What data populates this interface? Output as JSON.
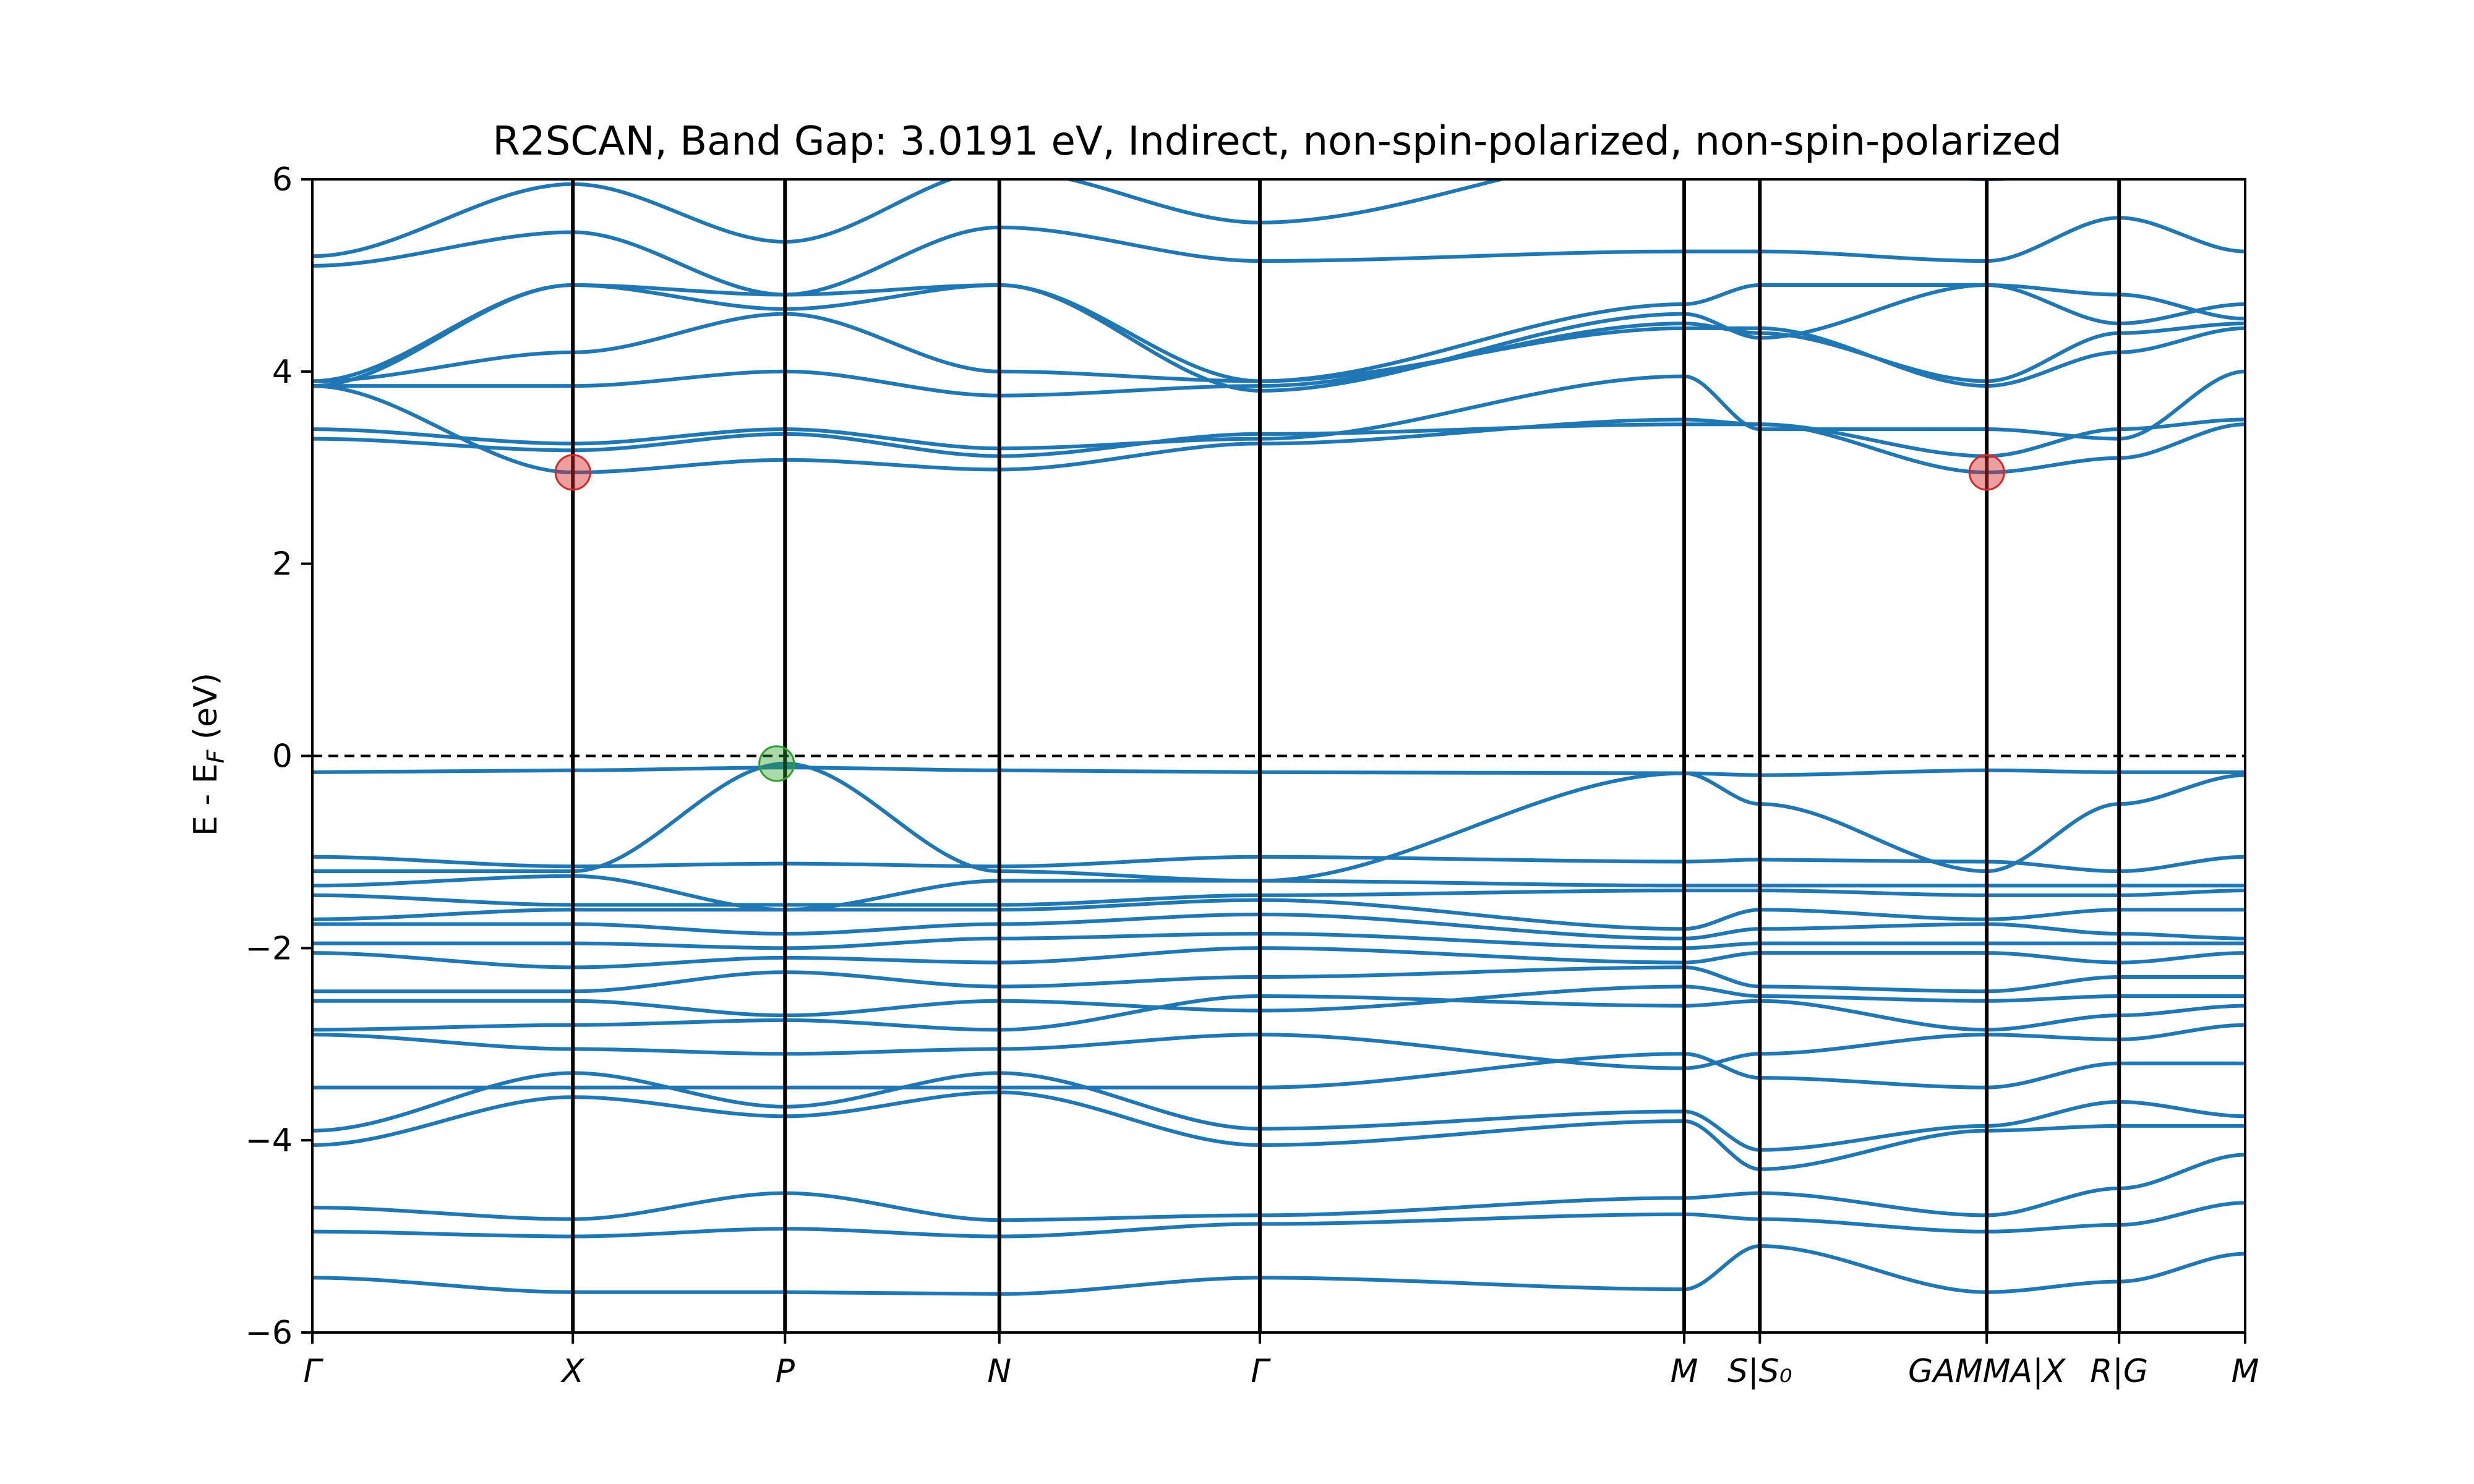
{
  "chart_data": {
    "type": "line",
    "title": "R2SCAN, Band Gap: 3.0191 eV, Indirect, non-spin-polarized, non-spin-polarized",
    "ylabel": "E - E",
    "ylabel_sub": "F",
    "ylabel_tail": " (eV)",
    "ylim": [
      -6,
      6
    ],
    "xlim": [
      0,
      9.2
    ],
    "yticks": [
      -6,
      -4,
      -2,
      0,
      2,
      4,
      6
    ],
    "ytick_labels": [
      "−6",
      "−4",
      "−2",
      "0",
      "2",
      "4",
      "6"
    ],
    "kpoints": [
      {
        "pos": 0.0,
        "label": "Γ"
      },
      {
        "pos": 1.24,
        "label": "X"
      },
      {
        "pos": 2.25,
        "label": "P"
      },
      {
        "pos": 3.27,
        "label": "N"
      },
      {
        "pos": 4.51,
        "label": "Γ"
      },
      {
        "pos": 6.53,
        "label": "M"
      },
      {
        "pos": 6.89,
        "label": "S|S₀"
      },
      {
        "pos": 7.97,
        "label": "GAMMA|X"
      },
      {
        "pos": 8.6,
        "label": "R|G"
      },
      {
        "pos": 9.2,
        "label": "M"
      }
    ],
    "fermi_level": 0,
    "cbm": [
      {
        "k": 1.24,
        "e": 2.95
      },
      {
        "k": 7.97,
        "e": 2.95
      }
    ],
    "vbm": [
      {
        "k": 2.21,
        "e": -0.08
      }
    ],
    "band_color": "#1f77b4",
    "cbm_color": "#d62728",
    "vbm_color": "#2ca02c",
    "series": [
      {
        "k": [
          0,
          1.24,
          2.25,
          3.27,
          4.51,
          6.53,
          6.89,
          7.97,
          8.6,
          9.2
        ],
        "e": [
          -5.43,
          -5.58,
          -5.58,
          -5.6,
          -5.43,
          -5.55,
          -5.1,
          -5.58,
          -5.47,
          -5.18
        ]
      },
      {
        "k": [
          0,
          1.24,
          2.25,
          3.27,
          4.51,
          6.53,
          6.89,
          7.97,
          8.6,
          9.2
        ],
        "e": [
          -4.95,
          -5.0,
          -4.92,
          -5.0,
          -4.87,
          -4.77,
          -4.82,
          -4.95,
          -4.88,
          -4.65
        ]
      },
      {
        "k": [
          0,
          1.24,
          2.25,
          3.27,
          4.51,
          6.53,
          6.89,
          7.97,
          8.6,
          9.2
        ],
        "e": [
          -4.7,
          -4.82,
          -4.55,
          -4.83,
          -4.78,
          -4.6,
          -4.55,
          -4.78,
          -4.5,
          -4.15
        ]
      },
      {
        "k": [
          0,
          1.24,
          2.25,
          3.27,
          4.51,
          6.53,
          6.89,
          7.97,
          8.6,
          9.2
        ],
        "e": [
          -4.05,
          -3.55,
          -3.75,
          -3.5,
          -4.05,
          -3.8,
          -4.3,
          -3.9,
          -3.85,
          -3.85
        ]
      },
      {
        "k": [
          0,
          1.24,
          2.25,
          3.27,
          4.51,
          6.53,
          6.89,
          7.97,
          8.6,
          9.2
        ],
        "e": [
          -3.9,
          -3.3,
          -3.65,
          -3.3,
          -3.88,
          -3.7,
          -4.1,
          -3.85,
          -3.6,
          -3.75
        ]
      },
      {
        "k": [
          0,
          1.24,
          2.25,
          3.27,
          4.51,
          6.53,
          6.89,
          7.97,
          8.6,
          9.2
        ],
        "e": [
          -3.45,
          -3.45,
          -3.45,
          -3.45,
          -3.45,
          -3.1,
          -3.35,
          -3.45,
          -3.2,
          -3.2
        ]
      },
      {
        "k": [
          0,
          1.24,
          2.25,
          3.27,
          4.51,
          6.53,
          6.89,
          7.97,
          8.6,
          9.2
        ],
        "e": [
          -2.9,
          -3.05,
          -3.1,
          -3.05,
          -2.9,
          -3.25,
          -3.1,
          -2.9,
          -2.95,
          -2.8
        ]
      },
      {
        "k": [
          0,
          1.24,
          2.25,
          3.27,
          4.51,
          6.53,
          6.89,
          7.97,
          8.6,
          9.2
        ],
        "e": [
          -2.85,
          -2.8,
          -2.75,
          -2.85,
          -2.5,
          -2.6,
          -2.55,
          -2.85,
          -2.7,
          -2.6
        ]
      },
      {
        "k": [
          0,
          1.24,
          2.25,
          3.27,
          4.51,
          6.53,
          6.89,
          7.97,
          8.6,
          9.2
        ],
        "e": [
          -2.55,
          -2.55,
          -2.7,
          -2.55,
          -2.65,
          -2.4,
          -2.5,
          -2.55,
          -2.5,
          -2.5
        ]
      },
      {
        "k": [
          0,
          1.24,
          2.25,
          3.27,
          4.51,
          6.53,
          6.89,
          7.97,
          8.6,
          9.2
        ],
        "e": [
          -2.45,
          -2.45,
          -2.25,
          -2.4,
          -2.3,
          -2.2,
          -2.4,
          -2.45,
          -2.3,
          -2.3
        ]
      },
      {
        "k": [
          0,
          1.24,
          2.25,
          3.27,
          4.51,
          6.53,
          6.89,
          7.97,
          8.6,
          9.2
        ],
        "e": [
          -2.05,
          -2.2,
          -2.1,
          -2.15,
          -2.0,
          -2.15,
          -2.05,
          -2.05,
          -2.15,
          -2.05
        ]
      },
      {
        "k": [
          0,
          1.24,
          2.25,
          3.27,
          4.51,
          6.53,
          6.89,
          7.97,
          8.6,
          9.2
        ],
        "e": [
          -1.95,
          -1.95,
          -2.0,
          -1.9,
          -1.85,
          -2.0,
          -1.95,
          -1.95,
          -1.95,
          -1.95
        ]
      },
      {
        "k": [
          0,
          1.24,
          2.25,
          3.27,
          4.51,
          6.53,
          6.89,
          7.97,
          8.6,
          9.2
        ],
        "e": [
          -1.75,
          -1.75,
          -1.85,
          -1.75,
          -1.65,
          -1.9,
          -1.8,
          -1.75,
          -1.85,
          -1.9
        ]
      },
      {
        "k": [
          0,
          1.24,
          2.25,
          3.27,
          4.51,
          6.53,
          6.89,
          7.97,
          8.6,
          9.2
        ],
        "e": [
          -1.7,
          -1.6,
          -1.6,
          -1.6,
          -1.5,
          -1.8,
          -1.6,
          -1.7,
          -1.6,
          -1.6
        ]
      },
      {
        "k": [
          0,
          1.24,
          2.25,
          3.27,
          4.51,
          6.53,
          6.89,
          7.97,
          8.6,
          9.2
        ],
        "e": [
          -1.45,
          -1.55,
          -1.55,
          -1.55,
          -1.45,
          -1.4,
          -1.4,
          -1.45,
          -1.45,
          -1.4
        ]
      },
      {
        "k": [
          0,
          1.24,
          2.25,
          3.27,
          4.51,
          6.53,
          6.89,
          7.97,
          8.6,
          9.2
        ],
        "e": [
          -1.35,
          -1.25,
          -1.6,
          -1.3,
          -1.3,
          -1.35,
          -1.35,
          -1.35,
          -1.35,
          -1.35
        ]
      },
      {
        "k": [
          0,
          1.24,
          2.25,
          3.27,
          4.51,
          6.53,
          6.89,
          7.97,
          8.6,
          9.2
        ],
        "e": [
          -1.05,
          -1.15,
          -1.12,
          -1.15,
          -1.05,
          -1.1,
          -1.08,
          -1.1,
          -1.2,
          -1.05
        ]
      },
      {
        "k": [
          0,
          1.24,
          2.25,
          3.27,
          4.51,
          6.53,
          6.89,
          7.97,
          8.6,
          9.2
        ],
        "e": [
          -1.2,
          -1.2,
          -0.08,
          -1.2,
          -1.3,
          -0.18,
          -0.5,
          -1.2,
          -0.5,
          -0.2
        ]
      },
      {
        "k": [
          0,
          1.24,
          2.25,
          3.27,
          4.51,
          6.53,
          6.89,
          7.97,
          8.6,
          9.2
        ],
        "e": [
          -0.17,
          -0.15,
          -0.12,
          -0.15,
          -0.17,
          -0.18,
          -0.2,
          -0.15,
          -0.17,
          -0.17
        ]
      },
      {
        "k": [
          0,
          1.24,
          2.25,
          3.27,
          4.51,
          6.53,
          6.89,
          7.97,
          8.6,
          9.2
        ],
        "e": [
          3.85,
          2.95,
          3.08,
          2.98,
          3.25,
          3.5,
          3.45,
          2.95,
          3.1,
          3.45
        ]
      },
      {
        "k": [
          0,
          1.24,
          2.25,
          3.27,
          4.51,
          6.53,
          6.89,
          7.97,
          8.6,
          9.2
        ],
        "e": [
          3.3,
          3.18,
          3.35,
          3.12,
          3.35,
          3.45,
          3.45,
          3.12,
          3.4,
          3.5
        ]
      },
      {
        "k": [
          0,
          1.24,
          2.25,
          3.27,
          4.51,
          6.53,
          6.89,
          7.97,
          8.6,
          9.2
        ],
        "e": [
          3.4,
          3.25,
          3.4,
          3.2,
          3.3,
          3.95,
          3.4,
          3.4,
          3.3,
          4.0
        ]
      },
      {
        "k": [
          0,
          1.24,
          2.25,
          3.27,
          4.51,
          6.53,
          6.89,
          7.97,
          8.6,
          9.2
        ],
        "e": [
          3.85,
          3.85,
          4.0,
          3.75,
          3.85,
          4.5,
          4.4,
          3.9,
          4.4,
          4.5
        ]
      },
      {
        "k": [
          0,
          1.24,
          2.25,
          3.27,
          4.51,
          6.53,
          6.89,
          7.97,
          8.6,
          9.2
        ],
        "e": [
          3.9,
          4.2,
          4.6,
          4.0,
          3.9,
          4.45,
          4.45,
          3.85,
          4.2,
          4.45
        ]
      },
      {
        "k": [
          0,
          1.24,
          2.25,
          3.27,
          4.51,
          6.53,
          6.89,
          7.97,
          8.6,
          9.2
        ],
        "e": [
          3.85,
          4.9,
          4.65,
          4.9,
          3.8,
          4.6,
          4.35,
          4.9,
          4.8,
          4.55
        ]
      },
      {
        "k": [
          0,
          1.24,
          2.25,
          3.27,
          4.51,
          6.53,
          6.89,
          7.97,
          8.6,
          9.2
        ],
        "e": [
          3.9,
          4.9,
          4.8,
          4.9,
          3.9,
          4.7,
          4.9,
          4.9,
          4.5,
          4.7
        ]
      },
      {
        "k": [
          0,
          1.24,
          2.25,
          3.27,
          4.51,
          6.53,
          6.89,
          7.97,
          8.6,
          9.2
        ],
        "e": [
          5.1,
          5.45,
          4.8,
          5.5,
          5.15,
          5.25,
          5.25,
          5.15,
          5.6,
          5.25
        ]
      },
      {
        "k": [
          0,
          1.24,
          2.25,
          3.27,
          4.51,
          6.53,
          6.89,
          7.97,
          8.6,
          9.2
        ],
        "e": [
          5.2,
          5.95,
          5.35,
          6.1,
          5.55,
          6.3,
          6.3,
          6.0,
          6.1,
          6.2
        ]
      }
    ]
  }
}
